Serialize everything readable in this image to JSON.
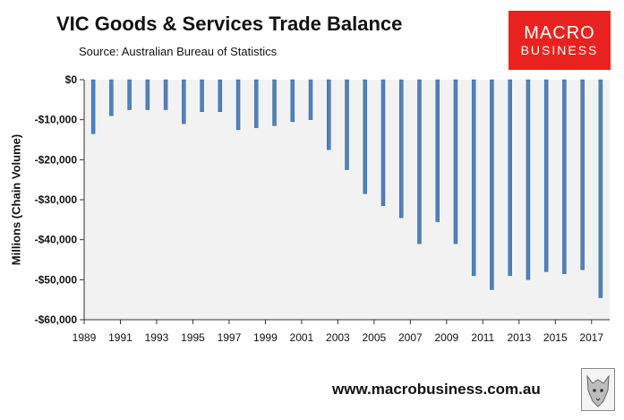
{
  "header": {
    "title": "VIC Goods & Services Trade Balance",
    "source": "Source:  Australian Bureau of Statistics"
  },
  "logo": {
    "line1": "MACRO",
    "line2": "BUSINESS"
  },
  "footer": {
    "website": "www.macrobusiness.com.au"
  },
  "colors": {
    "bar": "#4f81bd",
    "bar_edge": "#3a6799",
    "plot_bg": "#f2f2f2",
    "logo_bg": "#e8231f"
  },
  "chart_data": {
    "type": "bar",
    "title": "VIC Goods & Services Trade Balance",
    "xlabel": "",
    "ylabel": "Millions (Chain Volume)",
    "ylim": [
      -60000,
      0
    ],
    "yticks": [
      0,
      -10000,
      -20000,
      -30000,
      -40000,
      -50000,
      -60000
    ],
    "ytick_labels": [
      "$0",
      "-$10,000",
      "-$20,000",
      "-$30,000",
      "-$40,000",
      "-$50,000",
      "-$60,000"
    ],
    "x_tick_labels": [
      "1989",
      "1991",
      "1993",
      "1995",
      "1997",
      "1999",
      "2001",
      "2003",
      "2005",
      "2007",
      "2009",
      "2011",
      "2013",
      "2015",
      "2017"
    ],
    "categories": [
      "1990",
      "1991",
      "1992",
      "1993",
      "1994",
      "1995",
      "1996",
      "1997",
      "1998",
      "1999",
      "2000",
      "2001",
      "2002",
      "2003",
      "2004",
      "2005",
      "2006",
      "2007",
      "2008",
      "2009",
      "2010",
      "2011",
      "2012",
      "2013",
      "2014",
      "2015",
      "2016",
      "2017",
      "2018"
    ],
    "values": [
      -13500,
      -9000,
      -7500,
      -7500,
      -7500,
      -11000,
      -8000,
      -8000,
      -12500,
      -12000,
      -11500,
      -10500,
      -10000,
      -17500,
      -22500,
      -28500,
      -31500,
      -34500,
      -41000,
      -35500,
      -41000,
      -49000,
      -52500,
      -49000,
      -50000,
      -48000,
      -48500,
      -47500,
      -54500
    ],
    "grid": false,
    "legend": "none"
  }
}
